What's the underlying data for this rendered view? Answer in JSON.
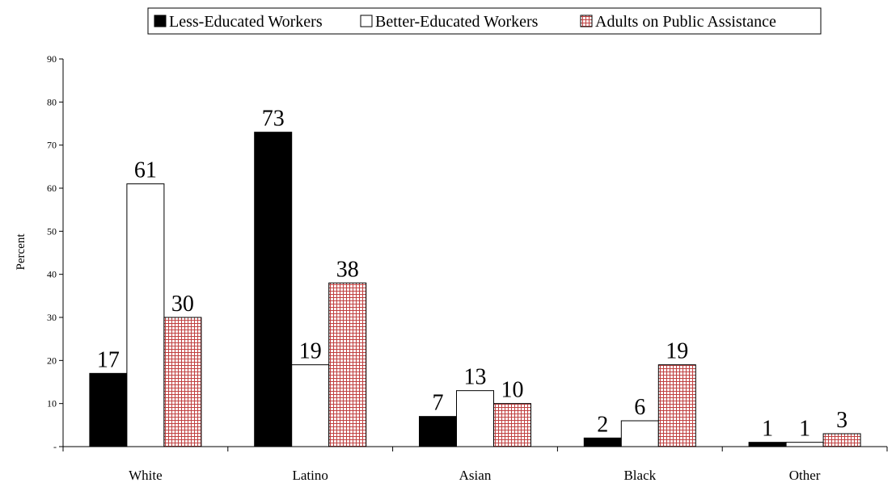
{
  "chart_data": {
    "type": "bar",
    "categories": [
      "White",
      "Latino",
      "Asian",
      "Black",
      "Other"
    ],
    "series": [
      {
        "name": "Less-Educated Workers",
        "values": [
          17,
          73,
          7,
          2,
          1
        ],
        "labels": [
          "17",
          "73",
          "7",
          "2",
          "1"
        ],
        "fill": "solid",
        "color": "#000000"
      },
      {
        "name": "Better-Educated Workers",
        "values": [
          61,
          19,
          13,
          6,
          1
        ],
        "labels": [
          "61",
          "19",
          "13",
          "6",
          "1"
        ],
        "fill": "none",
        "color": "#ffffff"
      },
      {
        "name": "Adults on Public Assistance",
        "values": [
          30,
          38,
          10,
          19,
          3
        ],
        "labels": [
          "30",
          "38",
          "10",
          "19",
          "3"
        ],
        "fill": "grid-pattern",
        "color": "#c04040"
      }
    ],
    "xlabel": "",
    "ylabel": "Percent",
    "ylim": [
      0,
      90
    ],
    "yticks": [
      0,
      10,
      20,
      30,
      40,
      50,
      60,
      70,
      80,
      90
    ],
    "ytick_labels": [
      "-",
      "10",
      "20",
      "30",
      "40",
      "50",
      "60",
      "70",
      "80",
      "90"
    ],
    "grid": false,
    "legend_position": "top-center"
  }
}
